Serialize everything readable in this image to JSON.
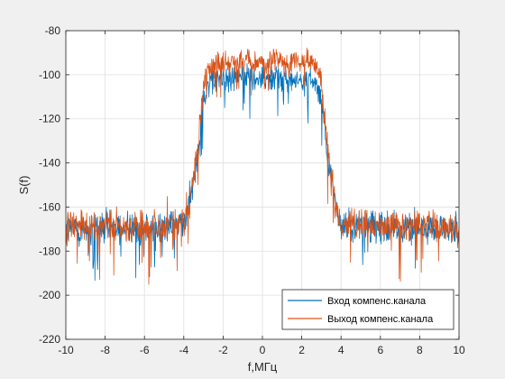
{
  "chart_data": {
    "type": "line",
    "title": "",
    "xlabel": "f,МГц",
    "ylabel": "S(f)",
    "xlim": [
      -10,
      10
    ],
    "ylim": [
      -220,
      -80
    ],
    "xticks": [
      -10,
      -8,
      -6,
      -4,
      -2,
      0,
      2,
      4,
      6,
      8,
      10
    ],
    "yticks": [
      -220,
      -200,
      -180,
      -160,
      -140,
      -120,
      -100,
      -80
    ],
    "grid": true,
    "legend_position": "bottom-right",
    "series": [
      {
        "name": "Вход компенс.канала",
        "color": "#0072bd",
        "x": [
          -10,
          -8,
          -6,
          -4,
          -3.8,
          -3.5,
          -3.2,
          -3.0,
          -2.8,
          -2.5,
          -2.0,
          -1.0,
          0,
          1.0,
          2.0,
          2.5,
          2.8,
          3.0,
          3.2,
          3.5,
          3.8,
          4,
          6,
          8,
          10
        ],
        "y": [
          -170,
          -170,
          -170,
          -168,
          -162,
          -148,
          -128,
          -110,
          -105,
          -103,
          -102,
          -101,
          -101,
          -101,
          -102,
          -103,
          -105,
          -110,
          -128,
          -148,
          -162,
          -168,
          -170,
          -170,
          -170
        ]
      },
      {
        "name": "Выход компенс.канала",
        "color": "#d95319",
        "x": [
          -10,
          -8,
          -6,
          -4,
          -3.8,
          -3.5,
          -3.2,
          -3.0,
          -2.8,
          -2.5,
          -2.0,
          -1.0,
          0,
          1.0,
          2.0,
          2.5,
          2.8,
          3.0,
          3.2,
          3.5,
          3.8,
          4,
          6,
          8,
          10
        ],
        "y": [
          -169,
          -169,
          -169,
          -167,
          -161,
          -146,
          -126,
          -106,
          -98,
          -95,
          -94,
          -94,
          -94,
          -94,
          -94,
          -95,
          -98,
          -106,
          -126,
          -146,
          -161,
          -167,
          -169,
          -169,
          -169
        ]
      }
    ]
  }
}
